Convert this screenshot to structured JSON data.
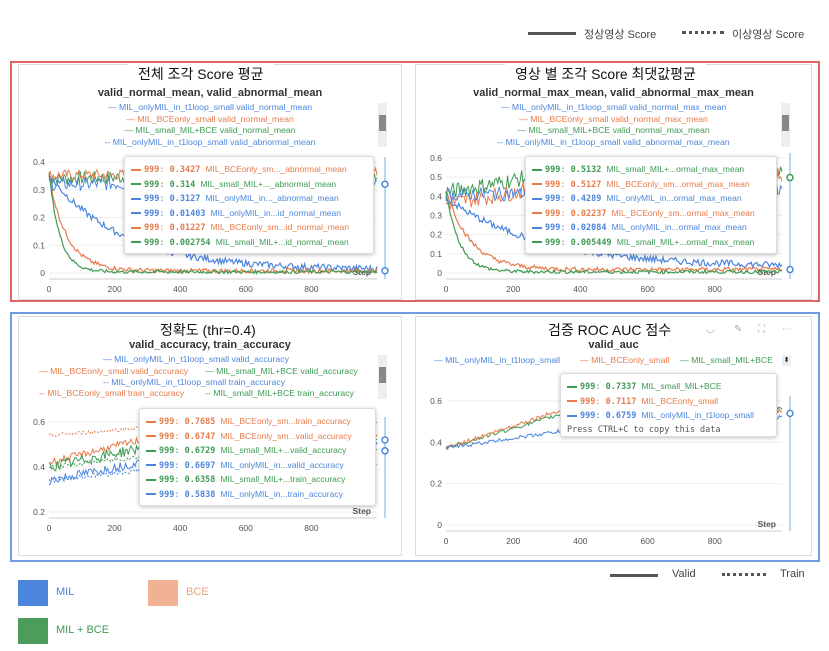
{
  "top_legend": {
    "solid_label": "정상영상 Score",
    "dotted_label": "이상영상 Score"
  },
  "bottom_legend": {
    "solid_label": "Valid",
    "dotted_label": "Train"
  },
  "model_legend": [
    {
      "label": "MIL",
      "color": "#4c86dc"
    },
    {
      "label": "BCE",
      "color": "#f0b293"
    },
    {
      "label": "MIL + BCE",
      "color": "#4c9c5c"
    }
  ],
  "colors": {
    "red_frame": "#e06666",
    "blue_frame": "#6f9be0",
    "blue": "#4c86dc",
    "orange": "#e87b4a",
    "green": "#3f9a54"
  },
  "panels": [
    {
      "section_title": "전체 조각 Score 평균",
      "card_title": "valid_normal_mean, valid_abnormal_mean",
      "legend": [
        {
          "text": "MIL_onlyMIL_in_t1loop_small valid_normal_mean",
          "color": "#4c86dc"
        },
        {
          "text": "MIL_BCEonly_small valid_normal_mean",
          "color": "#e87b4a"
        },
        {
          "text": "MIL_small_MIL+BCE valid_normal_mean",
          "color": "#3f9a54"
        },
        {
          "text": "MIL_onlyMIL_in_t1loop_small valid_abnormal_mean",
          "color": "#4c86dc"
        }
      ],
      "y_ticks": [
        "0.4",
        "0.3",
        "0.2",
        "0.1",
        "0"
      ],
      "x_ticks": [
        "0",
        "200",
        "400",
        "600",
        "800"
      ],
      "step_label": "Step",
      "tooltip": [
        {
          "step": "999",
          "value": "0.3427",
          "name": "MIL_BCEonly_sm..._abnormal_mean",
          "color": "#e87b4a"
        },
        {
          "step": "999",
          "value": "0.314",
          "name": "MIL_small_MIL+..._abnormal_mean",
          "color": "#3f9a54"
        },
        {
          "step": "999",
          "value": "0.3127",
          "name": "MIL_onlyMIL_in..._abnormal_mean",
          "color": "#4c86dc"
        },
        {
          "step": "999",
          "value": "0.01403",
          "name": "MIL_onlyMIL_in...id_normal_mean",
          "color": "#4c86dc"
        },
        {
          "step": "999",
          "value": "0.01227",
          "name": "MIL_BCEonly_sm...id_normal_mean",
          "color": "#e87b4a"
        },
        {
          "step": "999",
          "value": "0.002754",
          "name": "MIL_small_MIL+...id_normal_mean",
          "color": "#3f9a54"
        }
      ]
    },
    {
      "section_title": "영상 별 조각 Score 최댓값평균",
      "card_title": "valid_normal_max_mean, valid_abnormal_max_mean",
      "legend": [
        {
          "text": "MIL_onlyMIL_in_t1loop_small valid_normal_max_mean",
          "color": "#4c86dc"
        },
        {
          "text": "MIL_BCEonly_small valid_normal_max_mean",
          "color": "#e87b4a"
        },
        {
          "text": "MIL_small_MIL+BCE valid_normal_max_mean",
          "color": "#3f9a54"
        },
        {
          "text": "MIL_onlyMIL_in_t1loop_small valid_abnormal_max_mean",
          "color": "#4c86dc"
        }
      ],
      "y_ticks": [
        "0.6",
        "0.5",
        "0.4",
        "0.3",
        "0.2",
        "0.1",
        "0"
      ],
      "x_ticks": [
        "0",
        "200",
        "400",
        "600",
        "800"
      ],
      "step_label": "Step",
      "tooltip": [
        {
          "step": "999",
          "value": "0.5132",
          "name": "MIL_small_MIL+...ormal_max_mean",
          "color": "#3f9a54"
        },
        {
          "step": "999",
          "value": "0.5127",
          "name": "MIL_BCEonly_sm...ormal_max_mean",
          "color": "#e87b4a"
        },
        {
          "step": "999",
          "value": "0.4289",
          "name": "MIL_onlyMIL_in...ormal_max_mean",
          "color": "#4c86dc"
        },
        {
          "step": "999",
          "value": "0.02237",
          "name": "MIL_BCEonly_sm...ormal_max_mean",
          "color": "#e87b4a"
        },
        {
          "step": "999",
          "value": "0.02084",
          "name": "MIL_onlyMIL_in...ormal_max_mean",
          "color": "#4c86dc"
        },
        {
          "step": "999",
          "value": "0.005449",
          "name": "MIL_small_MIL+...ormal_max_mean",
          "color": "#3f9a54"
        }
      ]
    },
    {
      "section_title": "정확도 (thr=0.4)",
      "card_title": "valid_accuracy, train_accuracy",
      "legend": [
        {
          "text": "MIL_onlyMIL_in_t1loop_small valid_accuracy",
          "color": "#4c86dc"
        },
        {
          "text": "MIL_BCEonly_small valid_accuracy",
          "color": "#e87b4a"
        },
        {
          "text": "MIL_small_MIL+BCE valid_accuracy",
          "color": "#3f9a54"
        },
        {
          "text": "MIL_onlyMIL_in_t1loop_small train_accuracy",
          "color": "#4c86dc"
        },
        {
          "text": "MIL_BCEonly_small train_accuracy",
          "color": "#e87b4a"
        },
        {
          "text": "MIL_small_MIL+BCE train_accuracy",
          "color": "#3f9a54"
        }
      ],
      "y_ticks": [
        "0.6",
        "0.4",
        "0.2"
      ],
      "x_ticks": [
        "0",
        "200",
        "400",
        "600",
        "800"
      ],
      "step_label": "Step",
      "tooltip": [
        {
          "step": "999",
          "value": "0.7685",
          "name": "MIL_BCEonly_sm...train_accuracy",
          "color": "#e87b4a"
        },
        {
          "step": "999",
          "value": "0.6747",
          "name": "MIL_BCEonly_sm...valid_accuracy",
          "color": "#e87b4a"
        },
        {
          "step": "999",
          "value": "0.6729",
          "name": "MIL_small_MIL+...valid_accuracy",
          "color": "#3f9a54"
        },
        {
          "step": "999",
          "value": "0.6697",
          "name": "MIL_onlyMIL_in...valid_accuracy",
          "color": "#4c86dc"
        },
        {
          "step": "999",
          "value": "0.6358",
          "name": "MIL_small_MIL+...train_accuracy",
          "color": "#3f9a54"
        },
        {
          "step": "999",
          "value": "0.5838",
          "name": "MIL_onlyMIL_in...train_accuracy",
          "color": "#4c86dc"
        }
      ]
    },
    {
      "section_title": "검증 ROC AUC 점수",
      "card_title": "valid_auc",
      "legend": [
        {
          "text": "MIL_onlyMIL_in_t1loop_small",
          "color": "#4c86dc"
        },
        {
          "text": "MIL_BCEonly_small",
          "color": "#e87b4a"
        },
        {
          "text": "MIL_small_MIL+BCE",
          "color": "#3f9a54"
        }
      ],
      "y_ticks": [
        "0.6",
        "0.4",
        "0.2",
        "0"
      ],
      "x_ticks": [
        "0",
        "200",
        "400",
        "600",
        "800"
      ],
      "step_label": "Step",
      "tooltip": [
        {
          "step": "999",
          "value": "0.7337",
          "name": "MIL_small_MIL+BCE",
          "color": "#3f9a54"
        },
        {
          "step": "999",
          "value": "0.7117",
          "name": "MIL_BCEonly_small",
          "color": "#e87b4a"
        },
        {
          "step": "999",
          "value": "0.6759",
          "name": "MIL_onlyMIL_in_t1loop_small",
          "color": "#4c86dc"
        }
      ],
      "copy_hint": "Press CTRL+C to copy this data"
    }
  ]
}
